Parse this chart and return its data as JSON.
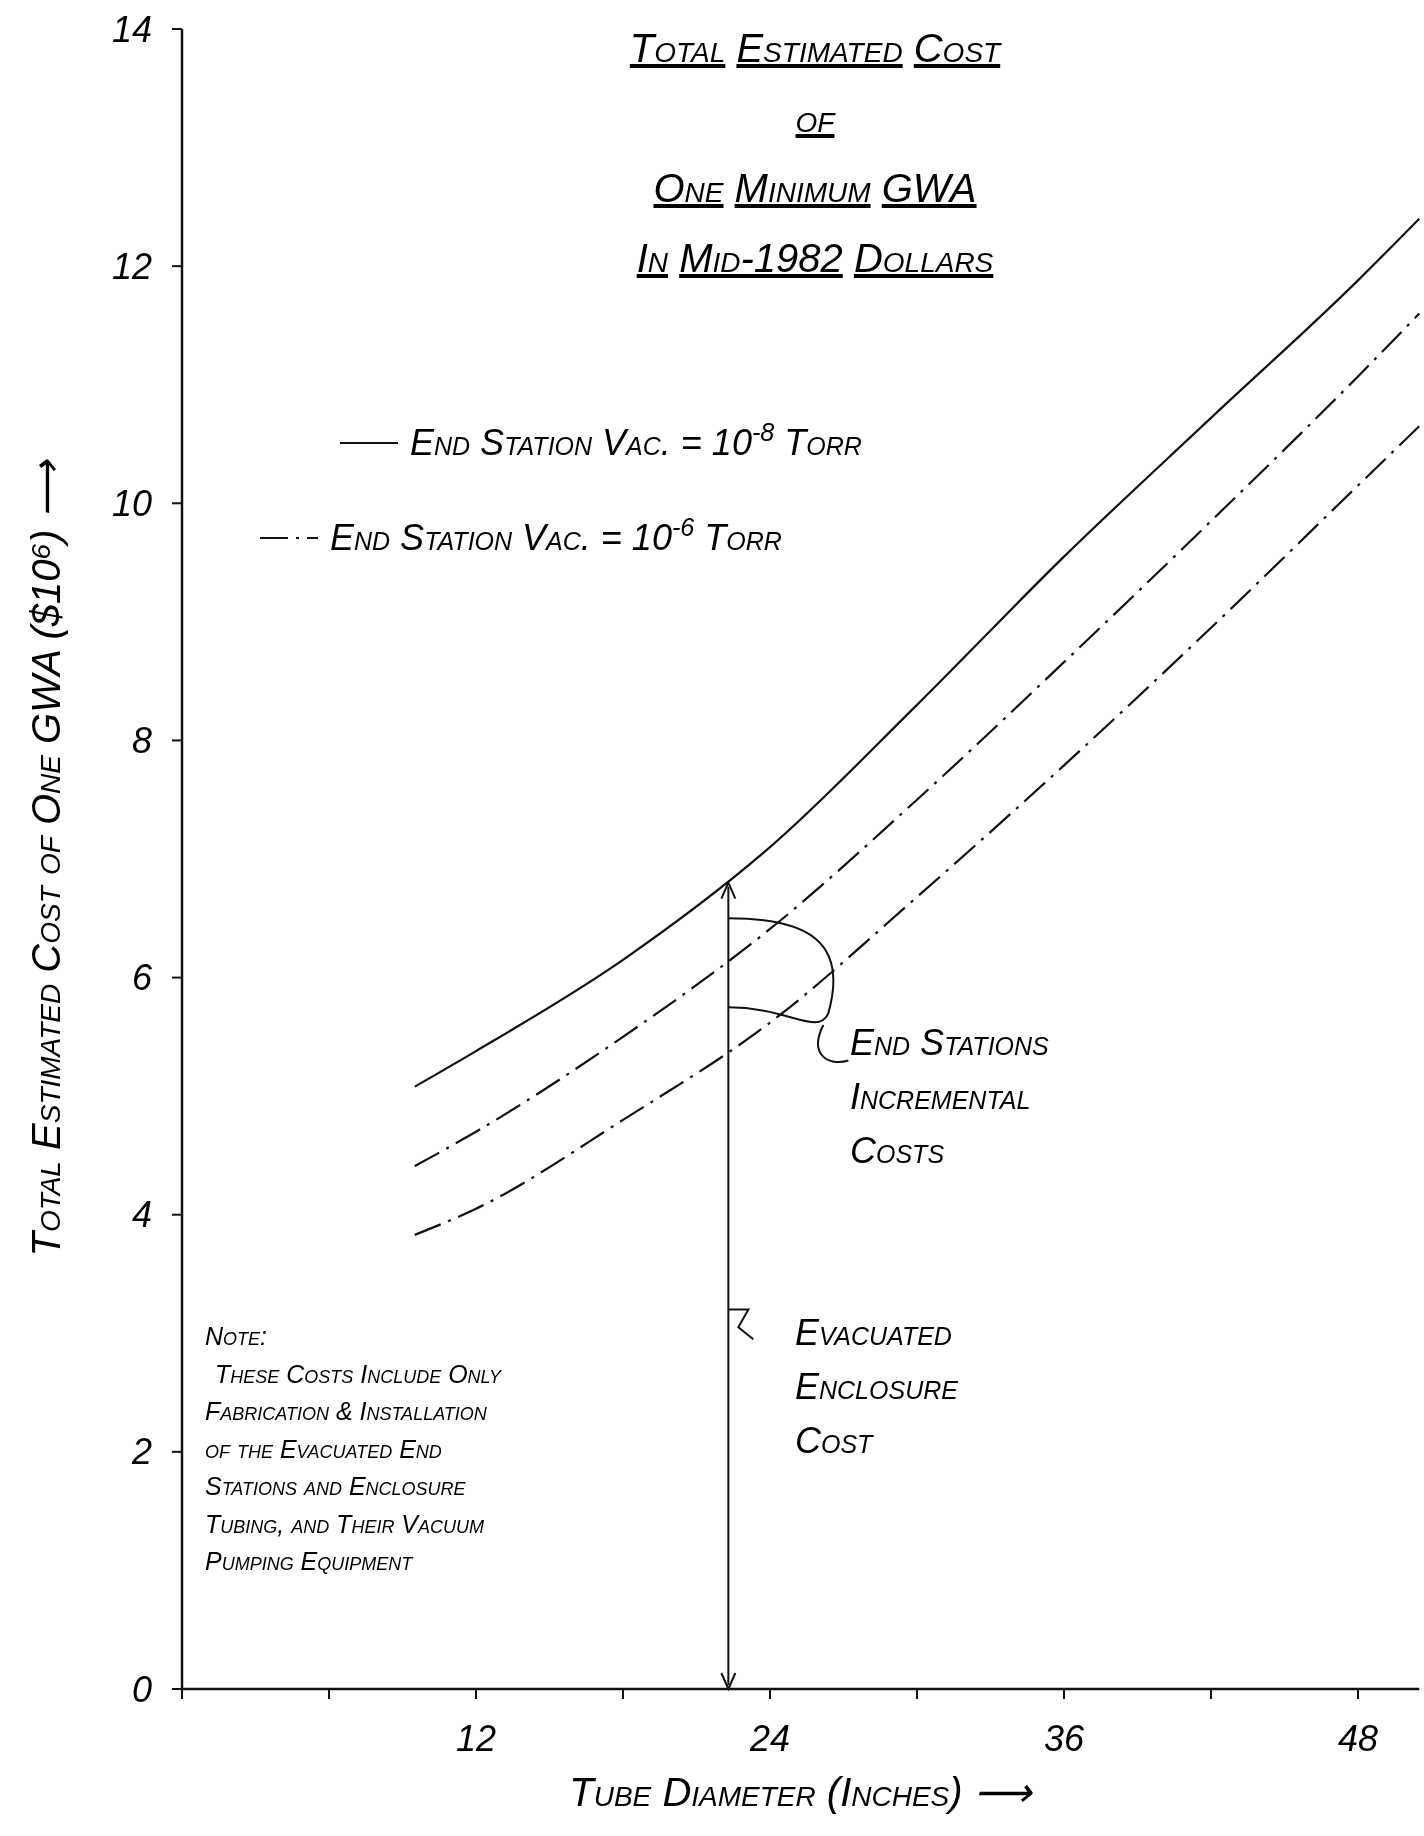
{
  "chart_data": {
    "type": "line",
    "title": "Total Estimated Cost\nof\nOne Minimum GWA",
    "subtitle": "In Mid-1982 Dollars",
    "xlabel": "Tube Diameter (Inches) ⟶",
    "ylabel": "Total Estimated Cost of One GWA ($10⁶) ⟶",
    "x": [
      9.5,
      12,
      18,
      24,
      30,
      36,
      42,
      48,
      50.5
    ],
    "series": [
      {
        "name": "End Station Vac. = 10$^{-8}$ Torr",
        "color": "#111111",
        "line_style": "solid",
        "values": [
          5.08,
          5.38,
          6.15,
          7.1,
          8.3,
          9.55,
          10.72,
          11.88,
          12.4
        ]
      },
      {
        "name": "End Station Vac. = 10$^{-6}$ Torr",
        "color": "#111111",
        "line_style": "dashed",
        "values": [
          4.41,
          4.7,
          5.5,
          6.41,
          7.5,
          8.66,
          9.85,
          11.07,
          11.6
        ]
      },
      {
        "color": "#111111",
        "line_style": "dashed",
        "values": [
          3.83,
          4.05,
          4.8,
          5.62,
          6.68,
          7.79,
          8.95,
          10.15,
          10.65
        ]
      }
    ],
    "xlim": [
      0,
      50.5
    ],
    "ylim": [
      0,
      14
    ],
    "xticks": [
      {
        "value": 0,
        "label": null
      },
      {
        "value": 6,
        "label": null
      },
      12,
      {
        "value": 18,
        "label": null
      },
      24,
      {
        "value": 30,
        "label": null
      },
      36,
      {
        "value": 42,
        "label": null
      },
      48
    ],
    "yticks": [
      0,
      2,
      4,
      6,
      8,
      10,
      12,
      14
    ],
    "grid": false,
    "legend": "top left",
    "annotations": [
      "End Stations\nIncremental\nCosts",
      "Evacuated\nEnclosure\nCost",
      "Note:\nThese Costs Include Only\nFabrication & Installation\nof the Evacuated End\nStations and Enclosure\nTubing, and Their Vacuum\nPumping Equipment"
    ]
  }
}
